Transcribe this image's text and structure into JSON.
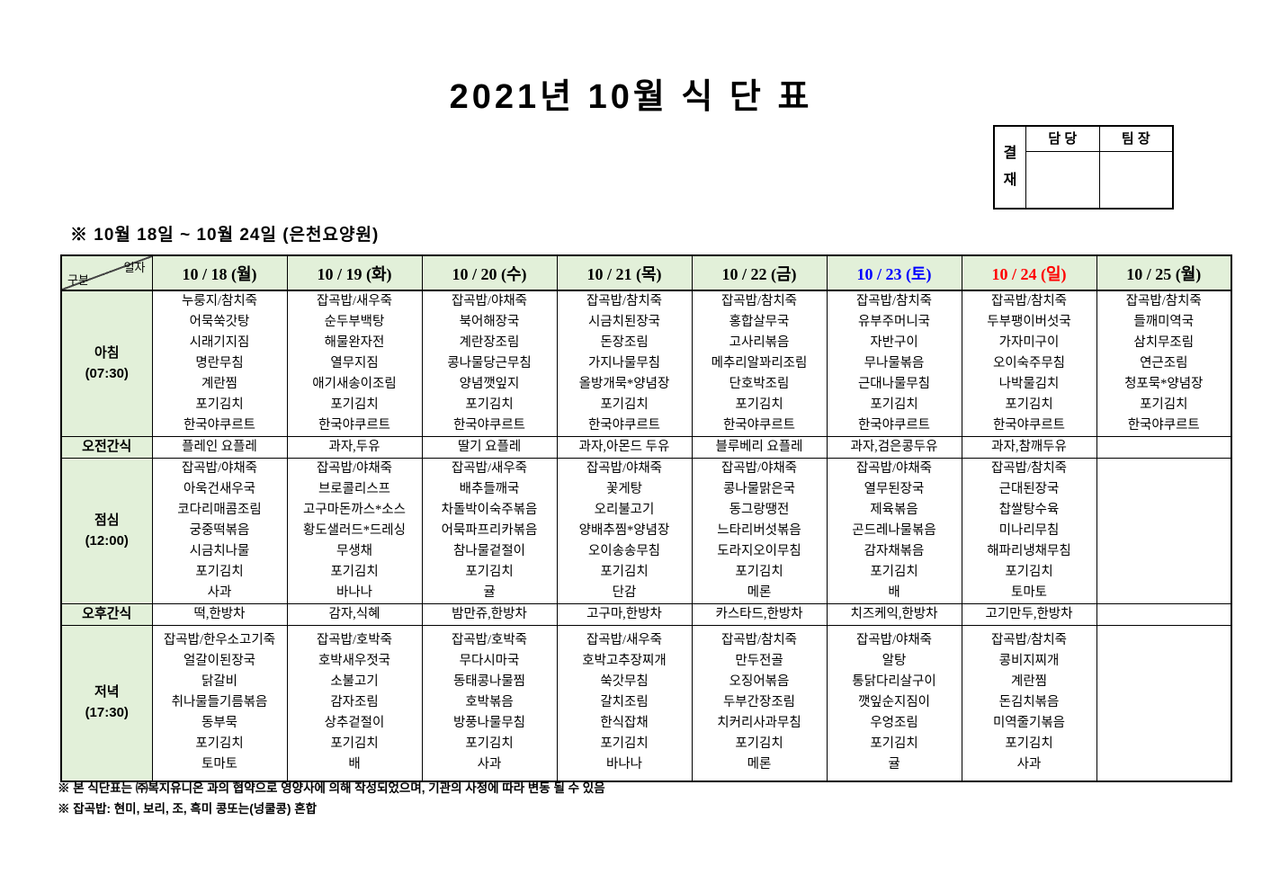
{
  "title": "2021년 10월 식 단 표",
  "approval": {
    "stamp_label": "결재",
    "columns": [
      "담 당",
      "팀 장"
    ]
  },
  "subtitle": "※ 10월 18일 ~ 10월 24일 (은천요양원)",
  "colors": {
    "header_green": "#e2f0d9",
    "snack_green": "#ebf6e3",
    "saturday_blue": "#0000ff",
    "sunday_red": "#ff0000",
    "text_black": "#000000"
  },
  "table": {
    "corner": {
      "date_label": "일자",
      "category_label": "구분"
    },
    "dates": [
      {
        "label": "10 / 18 (월)",
        "color": "#000000"
      },
      {
        "label": "10 / 19 (화)",
        "color": "#000000"
      },
      {
        "label": "10 / 20 (수)",
        "color": "#000000"
      },
      {
        "label": "10 / 21 (목)",
        "color": "#000000"
      },
      {
        "label": "10 / 22 (금)",
        "color": "#000000"
      },
      {
        "label": "10 / 23 (토)",
        "color": "#0000ff"
      },
      {
        "label": "10 / 24 (일)",
        "color": "#ff0000"
      },
      {
        "label": "10 / 25 (월)",
        "color": "#000000"
      }
    ],
    "rows": [
      {
        "id": "breakfast",
        "label": "아침",
        "time": "(07:30)",
        "type": "meal",
        "cells": [
          [
            "누룽지/참치죽",
            "어묵쑥갓탕",
            "시래기지짐",
            "명란무침",
            "계란찜",
            "포기김치",
            "한국야쿠르트"
          ],
          [
            "잡곡밥/새우죽",
            "순두부백탕",
            "해물완자전",
            "열무지짐",
            "애기새송이조림",
            "포기김치",
            "한국야쿠르트"
          ],
          [
            "잡곡밥/야채죽",
            "북어해장국",
            "계란장조림",
            "콩나물당근무침",
            "양념깻잎지",
            "포기김치",
            "한국야쿠르트"
          ],
          [
            "잡곡밥/참치죽",
            "시금치된장국",
            "돈장조림",
            "가지나물무침",
            "올방개묵*양념장",
            "포기김치",
            "한국야쿠르트"
          ],
          [
            "잡곡밥/참치죽",
            "홍합살무국",
            "고사리볶음",
            "메추리알꽈리조림",
            "단호박조림",
            "포기김치",
            "한국야쿠르트"
          ],
          [
            "잡곡밥/참치죽",
            "유부주머니국",
            "자반구이",
            "무나물볶음",
            "근대나물무침",
            "포기김치",
            "한국야쿠르트"
          ],
          [
            "잡곡밥/참치죽",
            "두부팽이버섯국",
            "가자미구이",
            "오이숙주무침",
            "나박물김치",
            "포기김치",
            "한국야쿠르트"
          ],
          [
            "잡곡밥/참치죽",
            "들깨미역국",
            "삼치무조림",
            "연근조림",
            "청포묵*양념장",
            "포기김치",
            "한국야쿠르트"
          ]
        ]
      },
      {
        "id": "am-snack",
        "label": "오전간식",
        "time": "",
        "type": "snack",
        "cells": [
          [
            "플레인 요플레"
          ],
          [
            "과자,두유"
          ],
          [
            "딸기 요플레"
          ],
          [
            "과자,아몬드 두유"
          ],
          [
            "블루베리 요플레"
          ],
          [
            "과자,검은콩두유"
          ],
          [
            "과자,참깨두유"
          ],
          []
        ]
      },
      {
        "id": "lunch",
        "label": "점심",
        "time": "(12:00)",
        "type": "meal",
        "cells": [
          [
            "잡곡밥/야채죽",
            "아욱건새우국",
            "코다리매콤조림",
            "궁중떡볶음",
            "시금치나물",
            "포기김치",
            "사과"
          ],
          [
            "잡곡밥/야채죽",
            "브로콜리스프",
            "고구마돈까스*소스",
            "황도샐러드*드레싱",
            "무생채",
            "포기김치",
            "바나나"
          ],
          [
            "잡곡밥/새우죽",
            "배추들깨국",
            "차돌박이숙주볶음",
            "어묵파프리카볶음",
            "참나물겉절이",
            "포기김치",
            "귤"
          ],
          [
            "잡곡밥/야채죽",
            "꽃게탕",
            "오리불고기",
            "양배추찜*양념장",
            "오이송송무침",
            "포기김치",
            "단감"
          ],
          [
            "잡곡밥/야채죽",
            "콩나물맑은국",
            "동그랑땡전",
            "느타리버섯볶음",
            "도라지오이무침",
            "포기김치",
            "메론"
          ],
          [
            "잡곡밥/야채죽",
            "열무된장국",
            "제육볶음",
            "곤드레나물볶음",
            "감자채볶음",
            "포기김치",
            "배"
          ],
          [
            "잡곡밥/참치죽",
            "근대된장국",
            "찹쌀탕수육",
            "미나리무침",
            "해파리냉채무침",
            "포기김치",
            "토마토"
          ],
          []
        ]
      },
      {
        "id": "pm-snack",
        "label": "오후간식",
        "time": "",
        "type": "snack",
        "cells": [
          [
            "떡,한방차"
          ],
          [
            "감자,식혜"
          ],
          [
            "밤만쥬,한방차"
          ],
          [
            "고구마,한방차"
          ],
          [
            "카스타드,한방차"
          ],
          [
            "치즈케익,한방차"
          ],
          [
            "고기만두,한방차"
          ],
          []
        ]
      },
      {
        "id": "dinner",
        "label": "저녁",
        "time": "(17:30)",
        "type": "meal",
        "cells": [
          [
            "잡곡밥/한우소고기죽",
            "얼갈이된장국",
            "닭갈비",
            "취나물들기름볶음",
            "동부묵",
            "포기김치",
            "토마토"
          ],
          [
            "잡곡밥/호박죽",
            "호박새우젓국",
            "소불고기",
            "감자조림",
            "상추겉절이",
            "포기김치",
            "배"
          ],
          [
            "잡곡밥/호박죽",
            "무다시마국",
            "동태콩나물찜",
            "호박볶음",
            "방풍나물무침",
            "포기김치",
            "사과"
          ],
          [
            "잡곡밥/새우죽",
            "호박고추장찌개",
            "쑥갓무침",
            "갈치조림",
            "한식잡채",
            "포기김치",
            "바나나"
          ],
          [
            "잡곡밥/참치죽",
            "만두전골",
            "오징어볶음",
            "두부간장조림",
            "치커리사과무침",
            "포기김치",
            "메론"
          ],
          [
            "잡곡밥/야채죽",
            "알탕",
            "통닭다리살구이",
            "깻잎순지짐이",
            "우엉조림",
            "포기김치",
            "귤"
          ],
          [
            "잡곡밥/참치죽",
            "콩비지찌개",
            "계란찜",
            "돈김치볶음",
            "미역줄기볶음",
            "포기김치",
            "사과"
          ],
          []
        ]
      }
    ]
  },
  "footnotes": [
    "※ 본 식단표는 ㈜복지유니온 과의 협약으로 영양사에 의해 작성되었으며, 기관의 사정에 따라 변동 될 수 있음",
    "※ 잡곡밥: 현미, 보리, 조, 흑미 콩또는(넝쿨콩) 혼합"
  ]
}
